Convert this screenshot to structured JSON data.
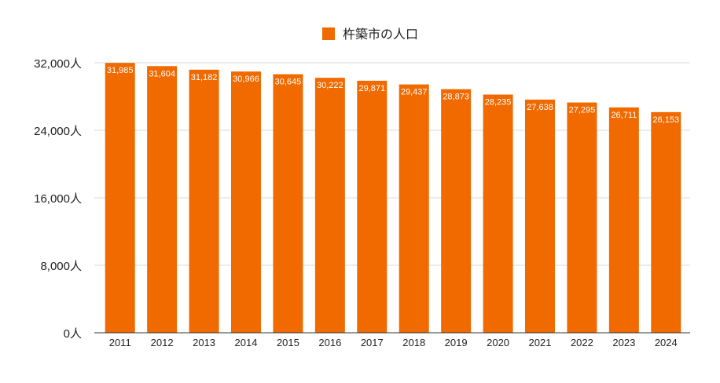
{
  "chart_data": {
    "type": "bar",
    "legend": {
      "label": "杵築市の人口",
      "position": "top-center"
    },
    "categories": [
      "2011",
      "2012",
      "2013",
      "2014",
      "2015",
      "2016",
      "2017",
      "2018",
      "2019",
      "2020",
      "2021",
      "2022",
      "2023",
      "2024"
    ],
    "series": [
      {
        "name": "杵築市の人口",
        "color": "#f06a00",
        "values": [
          31985,
          31604,
          31182,
          30966,
          30645,
          30222,
          29871,
          29437,
          28873,
          28235,
          27638,
          27295,
          26711,
          26153
        ],
        "data_labels": [
          "31,985",
          "31,604",
          "31,182",
          "30,966",
          "30,645",
          "30,222",
          "29,871",
          "29,437",
          "28,873",
          "28,235",
          "27,638",
          "27,295",
          "26,711",
          "26,153"
        ]
      }
    ],
    "ylim": [
      0,
      32000
    ],
    "yticks": [
      0,
      8000,
      16000,
      24000,
      32000
    ],
    "ytick_labels": [
      "0人",
      "8,000人",
      "16,000人",
      "24,000人",
      "32,000人"
    ],
    "grid": true
  }
}
